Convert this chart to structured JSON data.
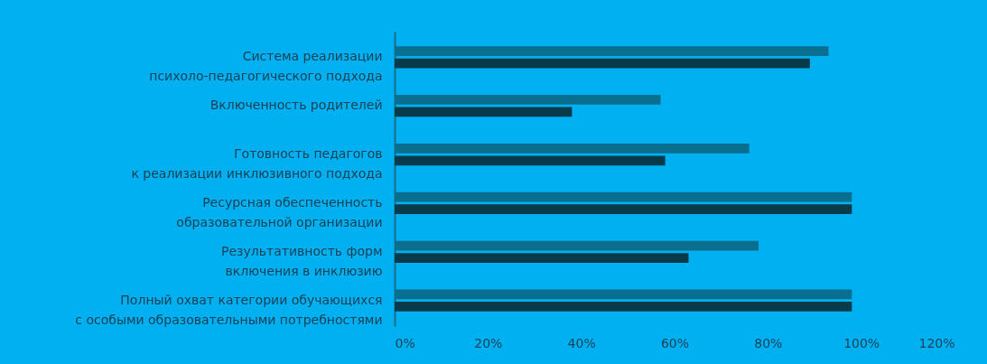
{
  "chart_data": {
    "type": "bar",
    "orientation": "horizontal",
    "categories": [
      "Система реализации\nпсихоло-педагогического подхода",
      "Включенность родителей",
      "Готовность педагогов\nк реализации инклюзивного подхода",
      "Ресурсная обеспеченность\nобразовательной организации",
      "Результативность форм\nвключения в инклюзию",
      "Полный  охват категории обучающихся\nс особыми образовательными потребностями"
    ],
    "series": [
      {
        "color": "#0a6f8f",
        "values": [
          93,
          57,
          76,
          98,
          78,
          98
        ]
      },
      {
        "color": "#083a4a",
        "values": [
          89,
          38,
          58,
          98,
          63,
          98
        ]
      }
    ],
    "xlim": [
      0,
      120
    ],
    "xticks": [
      {
        "value": 0,
        "label": "0%"
      },
      {
        "value": 20,
        "label": "20%"
      },
      {
        "value": 40,
        "label": "40%"
      },
      {
        "value": 60,
        "label": "60%"
      },
      {
        "value": 80,
        "label": "80%"
      },
      {
        "value": 100,
        "label": "100%"
      },
      {
        "value": 120,
        "label": "120%"
      }
    ],
    "grid": false,
    "legend": false
  }
}
